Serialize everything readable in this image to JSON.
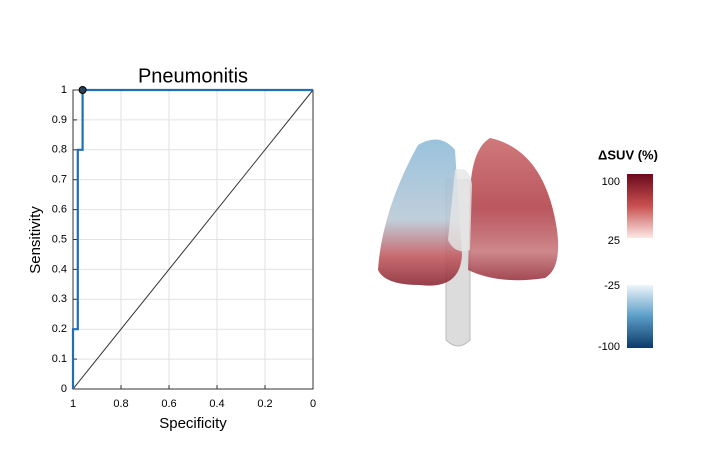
{
  "chart_data": {
    "type": "line",
    "title": "Pneumonitis",
    "x_label": "Specificity",
    "y_label": "Sensitivity",
    "x": [
      1,
      1,
      0.98,
      0.98,
      0.96,
      0.96,
      0
    ],
    "values": [
      0,
      0.2,
      0.2,
      0.8,
      0.8,
      1,
      1
    ],
    "color": "#1f6fb5",
    "reference_line": {
      "x": [
        1,
        0
      ],
      "values": [
        0,
        1
      ],
      "color": "#333333"
    },
    "marker": {
      "x": 0.96,
      "value": 1
    },
    "xlim": [
      1,
      0
    ],
    "ylim": [
      0,
      1
    ],
    "xticks": [
      1,
      0.8,
      0.6,
      0.4,
      0.2,
      0
    ],
    "yticks": [
      0,
      0.1,
      0.2,
      0.3,
      0.4,
      0.5,
      0.6,
      0.7,
      0.8,
      0.9,
      1
    ],
    "grid": true
  },
  "colorbar": {
    "title": "ΔSUV (%)",
    "ticks": [
      100,
      25,
      -25,
      -100
    ]
  }
}
